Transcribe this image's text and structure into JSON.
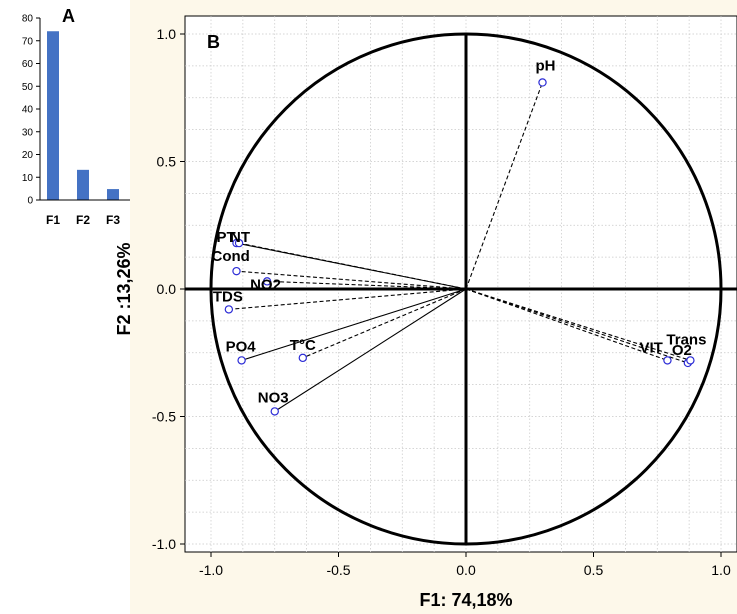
{
  "chart_data": [
    {
      "type": "bar",
      "panel_label": "A",
      "categories": [
        "F1",
        "F2",
        "F3"
      ],
      "values": [
        74.18,
        13.26,
        4.8
      ],
      "ylim": [
        0,
        80
      ],
      "yticks": [
        0,
        10,
        20,
        30,
        40,
        50,
        60,
        70,
        80
      ],
      "bar_color": "#4472c4",
      "grid": false
    },
    {
      "type": "scatter",
      "subtype": "correlation-circle",
      "panel_label": "B",
      "xlabel": "F1: 74,18%",
      "ylabel": "F2 :13,26%",
      "xlim": [
        -1.0,
        1.0
      ],
      "ylim": [
        -1.0,
        1.0
      ],
      "xticks": [
        "-1.0",
        "-0.5",
        "0.0",
        "0.5",
        "1.0"
      ],
      "yticks": [
        "-1.0",
        "-0.5",
        "0.0",
        "0.5",
        "1.0"
      ],
      "grid": true,
      "plot_background": "#ffffff",
      "figure_background": "#fdf8ea",
      "point_color": "#2b2bd6",
      "points": [
        {
          "name": "pH",
          "x": 0.3,
          "y": 0.81,
          "line": "dashed"
        },
        {
          "name": "PT",
          "x": -0.9,
          "y": 0.18,
          "line": "solid"
        },
        {
          "name": "NT",
          "x": -0.89,
          "y": 0.18,
          "line": "dashed"
        },
        {
          "name": "Cond",
          "x": -0.9,
          "y": 0.07,
          "line": "dashed"
        },
        {
          "name": "NO2",
          "x": -0.78,
          "y": 0.03,
          "line": "dashed"
        },
        {
          "name": "TDS",
          "x": -0.93,
          "y": -0.08,
          "line": "dashed"
        },
        {
          "name": "PO4",
          "x": -0.88,
          "y": -0.28,
          "line": "solid"
        },
        {
          "name": "T°C",
          "x": -0.64,
          "y": -0.27,
          "line": "dashed"
        },
        {
          "name": "NO3",
          "x": -0.75,
          "y": -0.48,
          "line": "solid"
        },
        {
          "name": "VIT",
          "x": 0.79,
          "y": -0.28,
          "line": "dashed"
        },
        {
          "name": "O2",
          "x": 0.87,
          "y": -0.29,
          "line": "dashed"
        },
        {
          "name": "Trans",
          "x": 0.88,
          "y": -0.28,
          "line": "dashed"
        }
      ]
    }
  ]
}
